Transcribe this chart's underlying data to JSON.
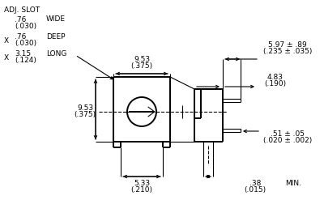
{
  "bg_color": "#ffffff",
  "line_color": "#000000",
  "text_color": "#000000",
  "fig_width": 4.0,
  "fig_height": 2.47,
  "dpi": 100,
  "ann": {
    "adj_slot": "ADJ. SLOT",
    "wide_top": ".76",
    "wide_bot": "(.030)",
    "wide_label": "WIDE",
    "x_deep": "X",
    "deep_top": ".76",
    "deep_bot": "(.030)",
    "deep_label": "DEEP",
    "x_long": "X",
    "long_top": "3.15",
    "long_bot": "(.124)",
    "long_label": "LONG",
    "h953_top": "9.53",
    "h953_bot": "(.375)",
    "v953_top": "9.53",
    "v953_bot": "(.375)",
    "d533_top": "5.33",
    "d533_bot": "(.210)",
    "d597_top": "5.97 ± .89",
    "d597_bot": "(.235 ± .035)",
    "d483_top": "4.83",
    "d483_bot": "(.190)",
    "d051_top": ".51 ± .05",
    "d051_bot": "(.020 ± .002)",
    "d038_top": ".38",
    "d038_bot": "(.015)",
    "min_label": "MIN."
  }
}
